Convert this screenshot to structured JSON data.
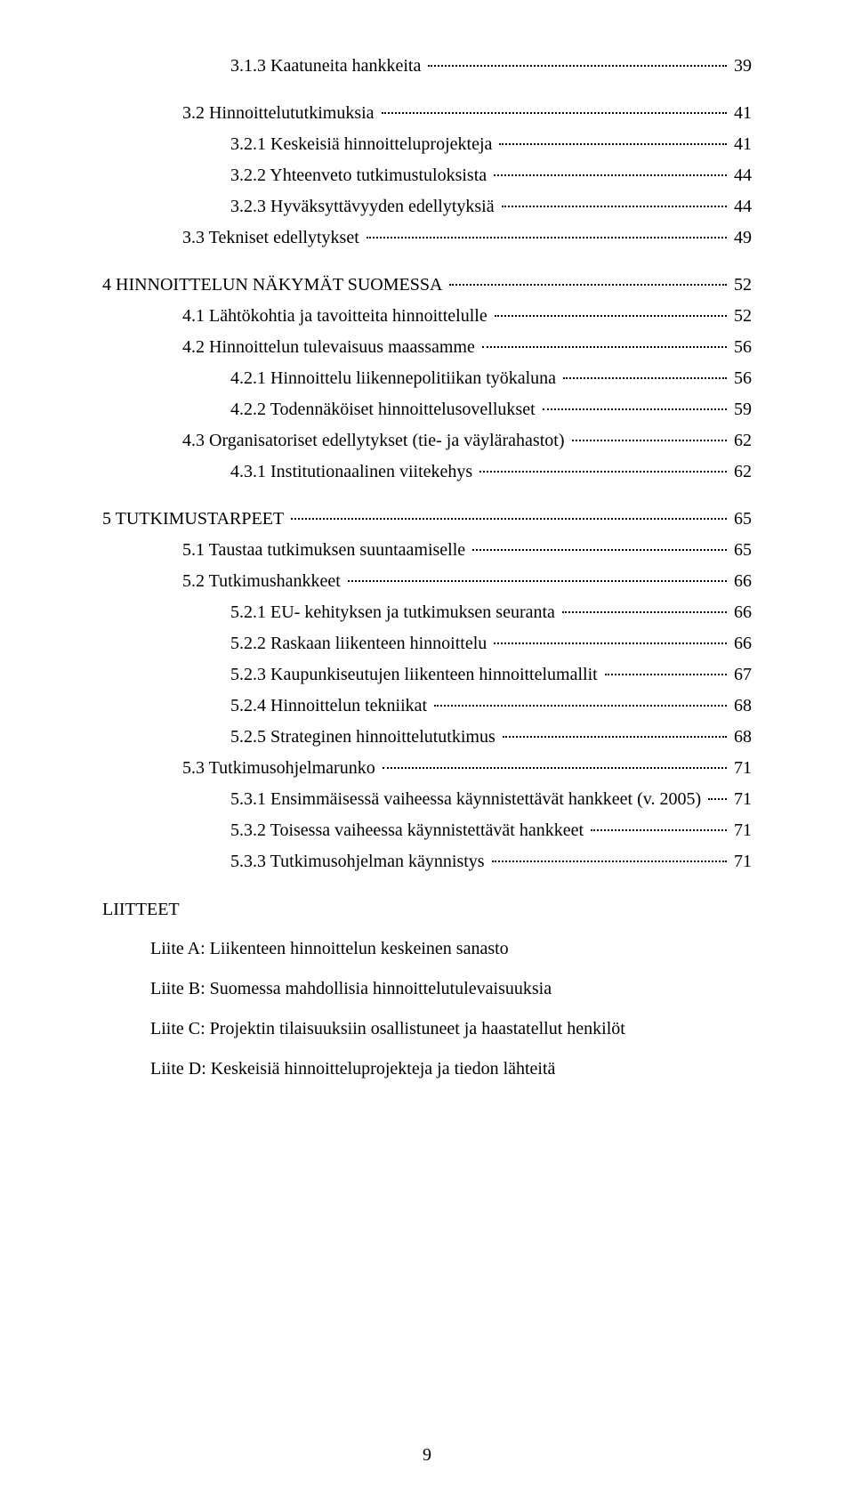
{
  "toc": [
    {
      "indent": 4,
      "label": "3.1.3  Kaatuneita hankkeita",
      "page": "39"
    },
    {
      "gap": true
    },
    {
      "indent": 3,
      "label": "3.2  Hinnoittelututkimuksia",
      "page": "41"
    },
    {
      "indent": 4,
      "label": "3.2.1  Keskeisiä hinnoitteluprojekteja",
      "page": "41"
    },
    {
      "indent": 4,
      "label": "3.2.2  Yhteenveto tutkimustuloksista",
      "page": "44"
    },
    {
      "indent": 4,
      "label": "3.2.3  Hyväksyttävyyden edellytyksiä",
      "page": "44"
    },
    {
      "indent": 3,
      "label": "3.3  Tekniset edellytykset",
      "page": "49"
    },
    {
      "gap": true
    },
    {
      "indent": 1,
      "label": "4   HINNOITTELUN NÄKYMÄT SUOMESSA",
      "page": "52"
    },
    {
      "indent": 3,
      "label": "4.1  Lähtökohtia ja tavoitteita hinnoittelulle",
      "page": "52"
    },
    {
      "indent": 3,
      "label": "4.2  Hinnoittelun tulevaisuus maassamme",
      "page": "56"
    },
    {
      "indent": 4,
      "label": "4.2.1  Hinnoittelu liikennepolitiikan työkaluna",
      "page": "56"
    },
    {
      "indent": 4,
      "label": "4.2.2  Todennäköiset hinnoittelusovellukset",
      "page": "59"
    },
    {
      "indent": 3,
      "label": "4.3  Organisatoriset edellytykset (tie- ja väylärahastot)",
      "page": "62"
    },
    {
      "indent": 4,
      "label": "4.3.1  Institutionaalinen viitekehys",
      "page": "62"
    },
    {
      "gap": true
    },
    {
      "indent": 1,
      "label": "5   TUTKIMUSTARPEET",
      "page": "65"
    },
    {
      "indent": 3,
      "label": "5.1  Taustaa tutkimuksen suuntaamiselle",
      "page": "65"
    },
    {
      "indent": 3,
      "label": "5.2  Tutkimushankkeet",
      "page": "66"
    },
    {
      "indent": 4,
      "label": "5.2.1  EU- kehityksen ja tutkimuksen seuranta",
      "page": "66"
    },
    {
      "indent": 4,
      "label": "5.2.2  Raskaan liikenteen hinnoittelu",
      "page": "66"
    },
    {
      "indent": 4,
      "label": "5.2.3  Kaupunkiseutujen liikenteen hinnoittelumallit",
      "page": "67"
    },
    {
      "indent": 4,
      "label": "5.2.4  Hinnoittelun tekniikat",
      "page": "68"
    },
    {
      "indent": 4,
      "label": "5.2.5  Strateginen hinnoittelututkimus",
      "page": "68"
    },
    {
      "indent": 3,
      "label": "5.3  Tutkimusohjelmarunko",
      "page": "71"
    },
    {
      "indent": 4,
      "label": "5.3.1  Ensimmäisessä vaiheessa käynnistettävät hankkeet (v. 2005)",
      "page": "71"
    },
    {
      "indent": 4,
      "label": "5.3.2  Toisessa vaiheessa käynnistettävät hankkeet",
      "page": "71"
    },
    {
      "indent": 4,
      "label": "5.3.3  Tutkimusohjelman käynnistys",
      "page": "71"
    }
  ],
  "appendix": {
    "heading": "LIITTEET",
    "items": [
      "Liite A: Liikenteen hinnoittelun keskeinen sanasto",
      "Liite B: Suomessa mahdollisia hinnoittelutulevaisuuksia",
      "Liite C: Projektin tilaisuuksiin osallistuneet ja haastatellut henkilöt",
      "Liite D: Keskeisiä hinnoitteluprojekteja ja tiedon lähteitä"
    ]
  },
  "footer_page_number": "9"
}
